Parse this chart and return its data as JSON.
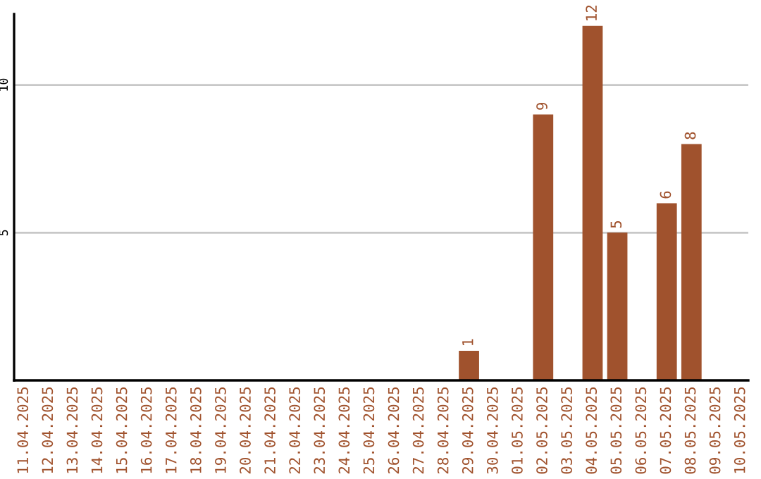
{
  "chart_data": {
    "type": "bar",
    "categories": [
      "11.04.2025",
      "12.04.2025",
      "13.04.2025",
      "14.04.2025",
      "15.04.2025",
      "16.04.2025",
      "17.04.2025",
      "18.04.2025",
      "19.04.2025",
      "20.04.2025",
      "21.04.2025",
      "22.04.2025",
      "23.04.2025",
      "24.04.2025",
      "25.04.2025",
      "26.04.2025",
      "27.04.2025",
      "28.04.2025",
      "29.04.2025",
      "30.04.2025",
      "01.05.2025",
      "02.05.2025",
      "03.05.2025",
      "04.05.2025",
      "05.05.2025",
      "06.05.2025",
      "07.05.2025",
      "08.05.2025",
      "09.05.2025",
      "10.05.2025"
    ],
    "values": [
      0,
      0,
      0,
      0,
      0,
      0,
      0,
      0,
      0,
      0,
      0,
      0,
      0,
      0,
      0,
      0,
      0,
      0,
      1,
      0,
      0,
      9,
      0,
      12,
      5,
      0,
      6,
      8,
      0,
      0
    ],
    "value_labels": [
      null,
      null,
      null,
      null,
      null,
      null,
      null,
      null,
      null,
      null,
      null,
      null,
      null,
      null,
      null,
      null,
      null,
      null,
      "1",
      null,
      null,
      "9",
      null,
      "12",
      "5",
      null,
      "6",
      "8",
      null,
      null
    ],
    "color": "#a0522d",
    "ylim": [
      0,
      12.4
    ],
    "yticks": [
      5,
      10
    ],
    "grid": "y",
    "legend": false
  }
}
